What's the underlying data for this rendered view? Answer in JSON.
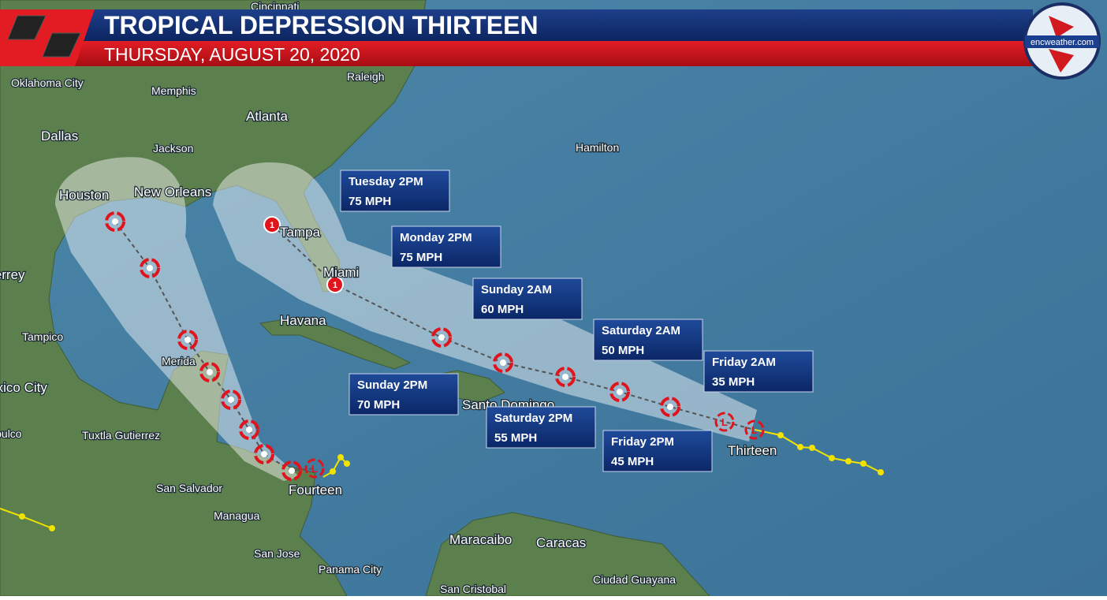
{
  "header": {
    "title": "TROPICAL DEPRESSION THIRTEEN",
    "subtitle": "THURSDAY, AUGUST 20, 2020",
    "logo": "encweather.com"
  },
  "cities": [
    "Cincinnati",
    "Oklahoma City",
    "Raleigh",
    "Memphis",
    "Atlanta",
    "Dallas",
    "Jackson",
    "Hamilton",
    "Houston",
    "New Orleans",
    "Tampa",
    "Miami",
    "Monterrey",
    "Havana",
    "Tampico",
    "Merida",
    "Mexico City",
    "Santo Domingo",
    "Acapulco",
    "Tuxtla Gutierrez",
    "San Salvador",
    "Managua",
    "Maracaibo",
    "Caracas",
    "San Jose",
    "Panama City",
    "Ciudad Guayana",
    "San Cristobal"
  ],
  "storms": [
    "Thirteen",
    "Fourteen"
  ],
  "forecast_points": [
    {
      "time": "Tuesday 2PM",
      "wind": "75 MPH"
    },
    {
      "time": "Monday 2PM",
      "wind": "75 MPH"
    },
    {
      "time": "Sunday 2AM",
      "wind": "60 MPH"
    },
    {
      "time": "Saturday 2AM",
      "wind": "50 MPH"
    },
    {
      "time": "Friday 2AM",
      "wind": "35 MPH"
    },
    {
      "time": "Sunday 2PM",
      "wind": "70 MPH"
    },
    {
      "time": "Saturday 2PM",
      "wind": "55 MPH"
    },
    {
      "time": "Friday 2PM",
      "wind": "45 MPH"
    }
  ],
  "track_icons": {
    "hurricane": "1",
    "low": "L"
  }
}
